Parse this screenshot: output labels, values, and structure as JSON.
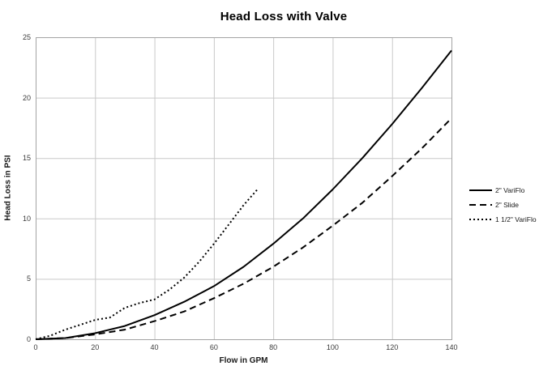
{
  "chart_data": {
    "type": "line",
    "title": "Head Loss with Valve",
    "xlabel": "Flow in GPM",
    "ylabel": "Head Loss in PSI",
    "xlim": [
      0,
      140
    ],
    "ylim": [
      0,
      25
    ],
    "x_ticks": [
      0,
      20,
      40,
      60,
      80,
      100,
      120,
      140
    ],
    "y_ticks": [
      0,
      5,
      10,
      15,
      20,
      25
    ],
    "grid": true,
    "legend_position": "right",
    "line_color": "#000000",
    "grid_color": "#c9c9c9",
    "series": [
      {
        "name": "2\" VariFlo",
        "line_style": "solid",
        "x": [
          0,
          10,
          20,
          30,
          40,
          50,
          60,
          70,
          80,
          90,
          100,
          110,
          120,
          130,
          140
        ],
        "y": [
          0,
          0.1,
          0.5,
          1.1,
          2.0,
          3.1,
          4.4,
          6.0,
          7.9,
          10.0,
          12.4,
          15.0,
          17.8,
          20.8,
          23.9
        ]
      },
      {
        "name": "2\" Slide",
        "line_style": "dashed",
        "x": [
          0,
          10,
          20,
          30,
          40,
          50,
          60,
          70,
          80,
          90,
          100,
          110,
          120,
          130,
          140
        ],
        "y": [
          0,
          0.1,
          0.4,
          0.8,
          1.5,
          2.3,
          3.4,
          4.6,
          6.0,
          7.6,
          9.4,
          11.3,
          13.5,
          15.8,
          18.3
        ]
      },
      {
        "name": "1 1/2\" VariFlo",
        "line_style": "dotted",
        "x": [
          0,
          5,
          10,
          15,
          20,
          25,
          30,
          35,
          40,
          45,
          50,
          55,
          60,
          65,
          70,
          75
        ],
        "y": [
          0,
          0.3,
          0.8,
          1.2,
          1.6,
          1.8,
          2.6,
          3.0,
          3.3,
          4.1,
          5.1,
          6.4,
          7.9,
          9.5,
          11.1,
          12.5
        ]
      }
    ]
  }
}
